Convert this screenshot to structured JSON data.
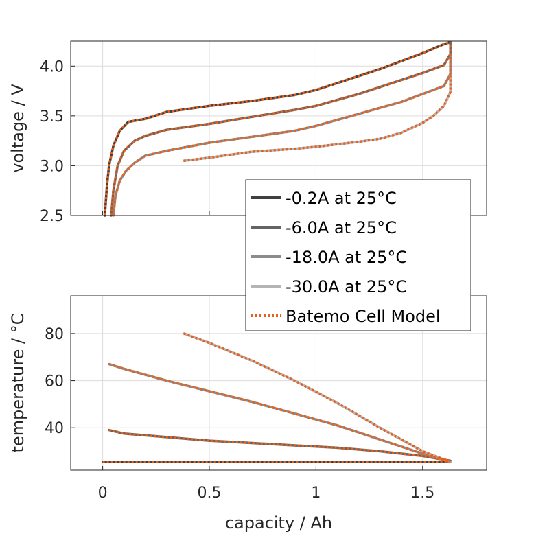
{
  "chart_data": [
    {
      "type": "line",
      "ylabel": "voltage / V",
      "xlabel": "",
      "xlim": [
        -0.15,
        1.8
      ],
      "ylim": [
        2.5,
        4.25
      ],
      "xticks": [
        0,
        0.5,
        1,
        1.5
      ],
      "yticks": [
        "2.5",
        "3.0",
        "3.5",
        "4.0"
      ],
      "grid": true,
      "series": [
        {
          "name": "-0.2A at 25°C",
          "color": "#404040",
          "points": [
            [
              0.01,
              2.5
            ],
            [
              0.02,
              2.8
            ],
            [
              0.03,
              3.0
            ],
            [
              0.05,
              3.2
            ],
            [
              0.08,
              3.35
            ],
            [
              0.12,
              3.44
            ],
            [
              0.2,
              3.47
            ],
            [
              0.3,
              3.54
            ],
            [
              0.5,
              3.6
            ],
            [
              0.7,
              3.65
            ],
            [
              0.9,
              3.71
            ],
            [
              1.0,
              3.76
            ],
            [
              1.1,
              3.83
            ],
            [
              1.2,
              3.9
            ],
            [
              1.3,
              3.97
            ],
            [
              1.4,
              4.05
            ],
            [
              1.5,
              4.13
            ],
            [
              1.6,
              4.22
            ],
            [
              1.63,
              4.24
            ]
          ]
        },
        {
          "name": "-6.0A at 25°C",
          "color": "#646464",
          "points": [
            [
              0.04,
              2.5
            ],
            [
              0.05,
              2.75
            ],
            [
              0.07,
              3.0
            ],
            [
              0.1,
              3.15
            ],
            [
              0.15,
              3.25
            ],
            [
              0.2,
              3.3
            ],
            [
              0.3,
              3.36
            ],
            [
              0.5,
              3.42
            ],
            [
              0.7,
              3.49
            ],
            [
              0.9,
              3.56
            ],
            [
              1.0,
              3.6
            ],
            [
              1.1,
              3.66
            ],
            [
              1.2,
              3.72
            ],
            [
              1.3,
              3.79
            ],
            [
              1.4,
              3.86
            ],
            [
              1.5,
              3.93
            ],
            [
              1.6,
              4.01
            ],
            [
              1.63,
              4.12
            ],
            [
              1.63,
              4.24
            ]
          ]
        },
        {
          "name": "-18.0A at 25°C",
          "color": "#8c8c8c",
          "points": [
            [
              0.05,
              2.5
            ],
            [
              0.06,
              2.7
            ],
            [
              0.08,
              2.85
            ],
            [
              0.11,
              2.95
            ],
            [
              0.15,
              3.03
            ],
            [
              0.2,
              3.1
            ],
            [
              0.3,
              3.15
            ],
            [
              0.5,
              3.23
            ],
            [
              0.7,
              3.29
            ],
            [
              0.9,
              3.35
            ],
            [
              1.0,
              3.4
            ],
            [
              1.1,
              3.46
            ],
            [
              1.2,
              3.52
            ],
            [
              1.3,
              3.58
            ],
            [
              1.4,
              3.64
            ],
            [
              1.5,
              3.72
            ],
            [
              1.6,
              3.8
            ],
            [
              1.63,
              3.92
            ],
            [
              1.63,
              4.12
            ]
          ]
        },
        {
          "name": "-30.0A at 25°C",
          "color": "#b4b4b4",
          "points": [
            [
              0.38,
              3.05
            ],
            [
              0.5,
              3.08
            ],
            [
              0.7,
              3.14
            ],
            [
              0.9,
              3.17
            ],
            [
              1.0,
              3.19
            ],
            [
              1.2,
              3.24
            ],
            [
              1.3,
              3.27
            ],
            [
              1.4,
              3.33
            ],
            [
              1.5,
              3.43
            ],
            [
              1.55,
              3.5
            ],
            [
              1.6,
              3.6
            ],
            [
              1.63,
              3.74
            ],
            [
              1.63,
              3.9
            ]
          ]
        },
        {
          "name": "Batemo Cell Model",
          "color": "#e8601c",
          "dashed": true,
          "points": []
        }
      ]
    },
    {
      "type": "line",
      "ylabel": "temperature / °C",
      "xlabel": "capacity / Ah",
      "xlim": [
        -0.15,
        1.8
      ],
      "ylim": [
        22,
        96
      ],
      "xticks": [
        "0",
        "0.5",
        "1",
        "1.5"
      ],
      "yticks": [
        "40",
        "60",
        "80"
      ],
      "grid": true,
      "series": [
        {
          "name": "-0.2A at 25°C",
          "color": "#404040",
          "points": [
            [
              0.0,
              25.5
            ],
            [
              0.3,
              25.5
            ],
            [
              0.6,
              25.4
            ],
            [
              0.9,
              25.4
            ],
            [
              1.2,
              25.4
            ],
            [
              1.5,
              25.4
            ],
            [
              1.63,
              25.4
            ]
          ]
        },
        {
          "name": "-6.0A at 25°C",
          "color": "#646464",
          "points": [
            [
              0.03,
              39
            ],
            [
              0.1,
              37.5
            ],
            [
              0.3,
              36
            ],
            [
              0.5,
              34.5
            ],
            [
              0.7,
              33.5
            ],
            [
              0.9,
              32.5
            ],
            [
              1.1,
              31.5
            ],
            [
              1.3,
              30
            ],
            [
              1.5,
              28
            ],
            [
              1.63,
              26
            ]
          ]
        },
        {
          "name": "-18.0A at 25°C",
          "color": "#8c8c8c",
          "points": [
            [
              0.03,
              67
            ],
            [
              0.1,
              65
            ],
            [
              0.3,
              60
            ],
            [
              0.5,
              55.5
            ],
            [
              0.7,
              51
            ],
            [
              0.9,
              46
            ],
            [
              1.1,
              41
            ],
            [
              1.3,
              35
            ],
            [
              1.5,
              29
            ],
            [
              1.63,
              25.5
            ]
          ]
        },
        {
          "name": "-30.0A at 25°C",
          "color": "#b4b4b4",
          "points": [
            [
              0.38,
              80
            ],
            [
              0.5,
              76
            ],
            [
              0.7,
              68.5
            ],
            [
              0.9,
              60
            ],
            [
              1.1,
              50.5
            ],
            [
              1.3,
              40
            ],
            [
              1.5,
              30
            ],
            [
              1.63,
              25.5
            ]
          ]
        }
      ]
    }
  ]
}
